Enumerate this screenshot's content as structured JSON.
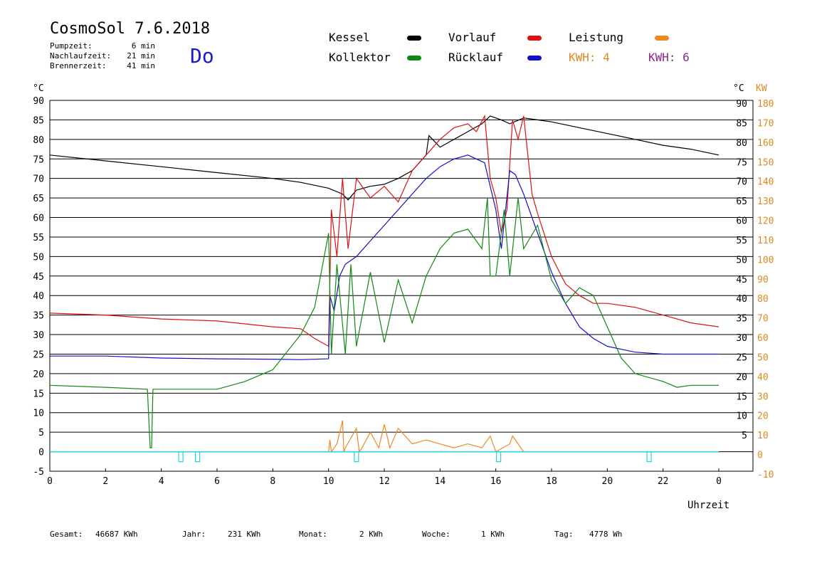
{
  "header": {
    "title": "CosmoSol 7.6.2018",
    "weekday": "Do",
    "stats": [
      {
        "label": "Pumpzeit:",
        "value": "6 min"
      },
      {
        "label": "Nachlaufzeit:",
        "value": "21 min"
      },
      {
        "label": "Brennerzeit:",
        "value": "41 min"
      }
    ]
  },
  "legend": {
    "items": [
      {
        "label": "Kessel",
        "color": "#000000"
      },
      {
        "label": "Vorlauf",
        "color": "#dd1111"
      },
      {
        "label": "Leistung",
        "color": "#ee8822"
      },
      {
        "label": "Kollektor",
        "color": "#118811"
      },
      {
        "label": "Rücklauf",
        "color": "#1111cc"
      }
    ],
    "kwh_a": "KWH: 4",
    "kwh_b": "KWH: 6"
  },
  "footer": {
    "items": [
      {
        "label": "Gesamt:",
        "value": "46687 KWh"
      },
      {
        "label": "Jahr:",
        "value": "231 KWh"
      },
      {
        "label": "Monat:",
        "value": "2 KWh"
      },
      {
        "label": "Woche:",
        "value": "1 KWh"
      },
      {
        "label": "Tag:",
        "value": "4778 Wh"
      }
    ]
  },
  "chart_data": {
    "type": "line",
    "xlabel": "Uhrzeit",
    "ylabel": "°C",
    "ylabel_right": "KW",
    "xlim": [
      0,
      24
    ],
    "ylim": [
      -5,
      90
    ],
    "xticks": [
      "0",
      "2",
      "4",
      "6",
      "8",
      "10",
      "12",
      "14",
      "16",
      "18",
      "20",
      "22",
      "0"
    ],
    "yticks_left": [
      "90",
      "85",
      "80",
      "75",
      "70",
      "65",
      "60",
      "55",
      "50",
      "45",
      "40",
      "35",
      "30",
      "25",
      "20",
      "15",
      "10",
      "5",
      "0",
      "-5"
    ],
    "yticks_right_c": [
      "90",
      "85",
      "80",
      "75",
      "70",
      "65",
      "60",
      "55",
      "50",
      "45",
      "40",
      "35",
      "30",
      "25",
      "20",
      "15",
      "10",
      "5"
    ],
    "yticks_right_kw": [
      "180",
      "170",
      "160",
      "150",
      "140",
      "130",
      "120",
      "110",
      "100",
      "90",
      "80",
      "70",
      "60",
      "50",
      "40",
      "30",
      "20",
      "10",
      "0",
      "-10"
    ],
    "grid": true,
    "series": [
      {
        "name": "Kessel",
        "color": "#000000",
        "x": [
          0,
          2,
          4,
          6,
          8,
          9,
          10,
          10.5,
          10.7,
          11,
          11.5,
          12,
          12.5,
          13,
          13.5,
          13.6,
          14,
          14.5,
          15,
          15.5,
          15.8,
          16.2,
          16.5,
          17,
          17.5,
          18,
          19,
          20,
          21,
          22,
          23,
          24
        ],
        "values": [
          76,
          74.5,
          73,
          71.5,
          70,
          69,
          67.5,
          66,
          64.5,
          67,
          68,
          68.5,
          70,
          72,
          76,
          81,
          78,
          80,
          82,
          84,
          86,
          85,
          84,
          85.5,
          85,
          84.5,
          83,
          81.5,
          80,
          78.5,
          77.5,
          76
        ]
      },
      {
        "name": "Vorlauf",
        "color": "#dd1111",
        "x": [
          0,
          2,
          4,
          6,
          8,
          9,
          9.5,
          10,
          10.1,
          10.3,
          10.5,
          10.7,
          11,
          11.5,
          12,
          12.5,
          13,
          13.5,
          14,
          14.5,
          15,
          15.3,
          15.6,
          15.8,
          16,
          16.2,
          16.4,
          16.6,
          16.8,
          17,
          17.3,
          17.5,
          18,
          18.5,
          19,
          19.5,
          20,
          21,
          22,
          23,
          24
        ],
        "values": [
          35.5,
          35,
          34,
          33.5,
          32,
          31.5,
          29,
          27,
          62,
          50,
          70,
          52,
          70,
          65,
          68,
          64,
          72,
          76,
          80,
          83,
          84,
          82,
          86,
          70,
          65,
          56,
          62,
          85,
          80,
          86,
          66,
          61,
          50,
          43,
          40,
          38,
          38,
          37,
          35,
          33,
          32
        ]
      },
      {
        "name": "Rücklauf",
        "color": "#1111cc",
        "x": [
          0,
          2,
          4,
          6,
          8,
          9,
          10,
          10.05,
          10.2,
          10.4,
          10.6,
          11,
          11.5,
          12,
          12.5,
          13,
          13.5,
          14,
          14.5,
          15,
          15.3,
          15.6,
          15.8,
          16,
          16.2,
          16.5,
          16.7,
          17,
          17.5,
          18,
          18.5,
          19,
          19.5,
          20,
          21,
          22,
          23,
          24
        ],
        "values": [
          24.5,
          24.5,
          24,
          23.8,
          23.7,
          23.6,
          23.8,
          40,
          36,
          45,
          48,
          50,
          54,
          58,
          62,
          66,
          70,
          73,
          75,
          76,
          75,
          74,
          68,
          62,
          52,
          72,
          71,
          66,
          56,
          46,
          38,
          32,
          29,
          27,
          25.5,
          25,
          25,
          25
        ]
      },
      {
        "name": "Kollektor",
        "color": "#118811",
        "x": [
          0,
          2,
          3.5,
          3.6,
          3.65,
          3.7,
          4,
          6,
          7,
          8,
          9,
          9.5,
          10,
          10.1,
          10.3,
          10.6,
          10.8,
          11,
          11.5,
          12,
          12.5,
          13,
          13.5,
          14,
          14.5,
          15,
          15.5,
          15.7,
          15.8,
          16,
          16.3,
          16.5,
          16.8,
          17,
          17.5,
          18,
          18.5,
          19,
          19.5,
          20,
          20.5,
          21,
          22,
          22.5,
          23,
          24
        ],
        "values": [
          17,
          16.5,
          16,
          1,
          1,
          16,
          16,
          16,
          18,
          21,
          30,
          37,
          56,
          25,
          48,
          25,
          48,
          27,
          46,
          28,
          44,
          33,
          45,
          52,
          56,
          57,
          52,
          65,
          45,
          45,
          62,
          45,
          65,
          52,
          58,
          44,
          38,
          42,
          40,
          32,
          24,
          20,
          18,
          16.5,
          17,
          17
        ]
      },
      {
        "name": "Leistung",
        "color": "#ee8822",
        "x": [
          0,
          10,
          10.05,
          10.1,
          10.3,
          10.5,
          10.55,
          10.6,
          11,
          11.1,
          11.2,
          11.5,
          11.8,
          12,
          12.2,
          12.5,
          13,
          13.5,
          14,
          14.5,
          15,
          15.5,
          15.8,
          16,
          16.5,
          16.6,
          17,
          24
        ],
        "values": [
          0,
          0,
          3,
          0,
          2,
          8,
          0,
          1,
          6,
          0,
          1,
          5,
          1,
          7,
          1,
          6,
          2,
          3,
          2,
          1,
          2,
          1,
          4,
          0,
          2,
          4,
          0,
          0
        ]
      }
    ],
    "pump_markers_hours": [
      4.7,
      5.3,
      11.0,
      16.1,
      21.5
    ]
  }
}
